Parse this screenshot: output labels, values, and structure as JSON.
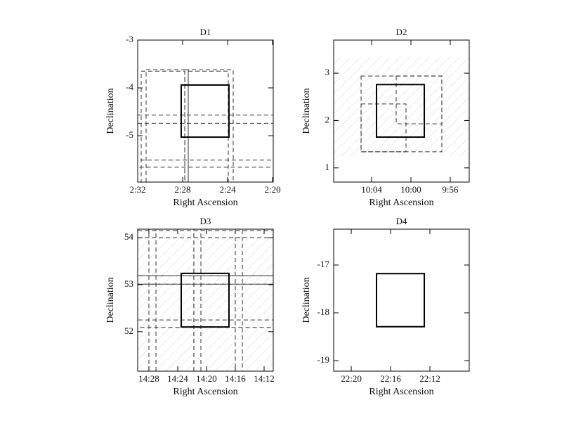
{
  "chart_data": [
    {
      "type": "footprint",
      "title": "D1",
      "xlabel": "Right Ascension",
      "ylabel": "Declination",
      "xlim": [
        152,
        139.94
      ],
      "ylim": [
        -5.97,
        -3
      ],
      "xticks": [
        {
          "value": 152,
          "label": "2:32"
        },
        {
          "value": 148,
          "label": "2:28"
        },
        {
          "value": 144,
          "label": "2:24"
        },
        {
          "value": 140,
          "label": "2:20"
        }
      ],
      "yticks": [
        -5,
        -4,
        -3
      ],
      "hatched": [],
      "pointings": [
        {
          "x": [
            151.69,
            147.81
          ],
          "y": [
            -5.97,
            -3.65
          ]
        },
        {
          "x": [
            151.25,
            147.5
          ],
          "y": [
            -5.97,
            -3.62
          ]
        },
        {
          "x": [
            147.5,
            143.94
          ],
          "y": [
            -5.97,
            -3.65
          ]
        },
        {
          "x": [
            147.81,
            143.5
          ],
          "y": [
            -5.97,
            -3.62
          ]
        },
        {
          "x": [
            152,
            139.94
          ],
          "y": [
            -5.51,
            -4.57
          ]
        },
        {
          "x": [
            152,
            139.94
          ],
          "y": [
            -5.66,
            -4.74
          ]
        }
      ],
      "field": {
        "x": [
          148.13,
          143.88
        ],
        "y": [
          -5.03,
          -3.94
        ]
      }
    },
    {
      "type": "footprint",
      "title": "D2",
      "xlabel": "Right Ascension",
      "ylabel": "Declination",
      "xlim": [
        607.86,
        594.07
      ],
      "ylim": [
        0.7,
        3.7
      ],
      "xticks": [
        {
          "value": 604,
          "label": "10:04"
        },
        {
          "value": 600,
          "label": "10:00"
        },
        {
          "value": 596,
          "label": "9:56"
        }
      ],
      "yticks": [
        1,
        2,
        3
      ],
      "hatched": [
        {
          "x": [
            607.86,
            594.07
          ],
          "y": [
            1.25,
            3.35
          ]
        }
      ],
      "pointings": [
        {
          "x": [
            605.07,
            596.86
          ],
          "y": [
            1.34,
            2.94
          ]
        },
        {
          "x": [
            605.07,
            600.5
          ],
          "y": [
            1.34,
            2.35
          ]
        },
        {
          "x": [
            601.5,
            596.86
          ],
          "y": [
            1.93,
            2.94
          ]
        }
      ],
      "field": {
        "x": [
          603.5,
          598.64
        ],
        "y": [
          1.65,
          2.76
        ]
      }
    },
    {
      "type": "footprint",
      "title": "D3",
      "xlabel": "Right Ascension",
      "ylabel": "Declination",
      "xlim": [
        869.56,
        850.73
      ],
      "ylim": [
        51.16,
        54.18
      ],
      "xticks": [
        {
          "value": 868,
          "label": "14:28"
        },
        {
          "value": 864,
          "label": "14:24"
        },
        {
          "value": 860,
          "label": "14:20"
        },
        {
          "value": 856,
          "label": "14:16"
        },
        {
          "value": 852,
          "label": "14:12"
        }
      ],
      "yticks": [
        52,
        53,
        54
      ],
      "hatched": [
        {
          "x": [
            869.56,
            850.73
          ],
          "y": [
            51.16,
            54.18
          ]
        }
      ],
      "pointings": [
        {
          "x": [
            868,
            861.76
          ],
          "y": [
            51.16,
            54.18
          ]
        },
        {
          "x": [
            867.02,
            860.78
          ],
          "y": [
            51.16,
            54.18
          ]
        },
        {
          "x": [
            861.76,
            855.02
          ],
          "y": [
            51.16,
            54.18
          ]
        },
        {
          "x": [
            860.78,
            856
          ],
          "y": [
            51.16,
            54.18
          ]
        },
        {
          "x": [
            869.56,
            850.73
          ],
          "y": [
            53.01,
            54.15
          ]
        },
        {
          "x": [
            869.56,
            850.73
          ],
          "y": [
            53.19,
            54
          ]
        },
        {
          "x": [
            869.56,
            850.73
          ],
          "y": [
            52.09,
            53.19
          ]
        },
        {
          "x": [
            869.56,
            850.73
          ],
          "y": [
            52.25,
            53.01
          ]
        }
      ],
      "field": {
        "x": [
          863.51,
          856.88
        ],
        "y": [
          52.1,
          53.24
        ]
      }
    },
    {
      "type": "footprint",
      "title": "D4",
      "xlabel": "Right Ascension",
      "ylabel": "Declination",
      "xlim": [
        1341.79,
        1328
      ],
      "ylim": [
        -19.22,
        -16.25
      ],
      "xticks": [
        {
          "value": 1340,
          "label": "22:20"
        },
        {
          "value": 1336,
          "label": "22:16"
        },
        {
          "value": 1332,
          "label": "22:12"
        }
      ],
      "yticks": [
        -19,
        -18,
        -17
      ],
      "hatched": [],
      "pointings": [],
      "field": {
        "x": [
          1337.43,
          1332.57
        ],
        "y": [
          -18.29,
          -17.18
        ]
      }
    }
  ]
}
